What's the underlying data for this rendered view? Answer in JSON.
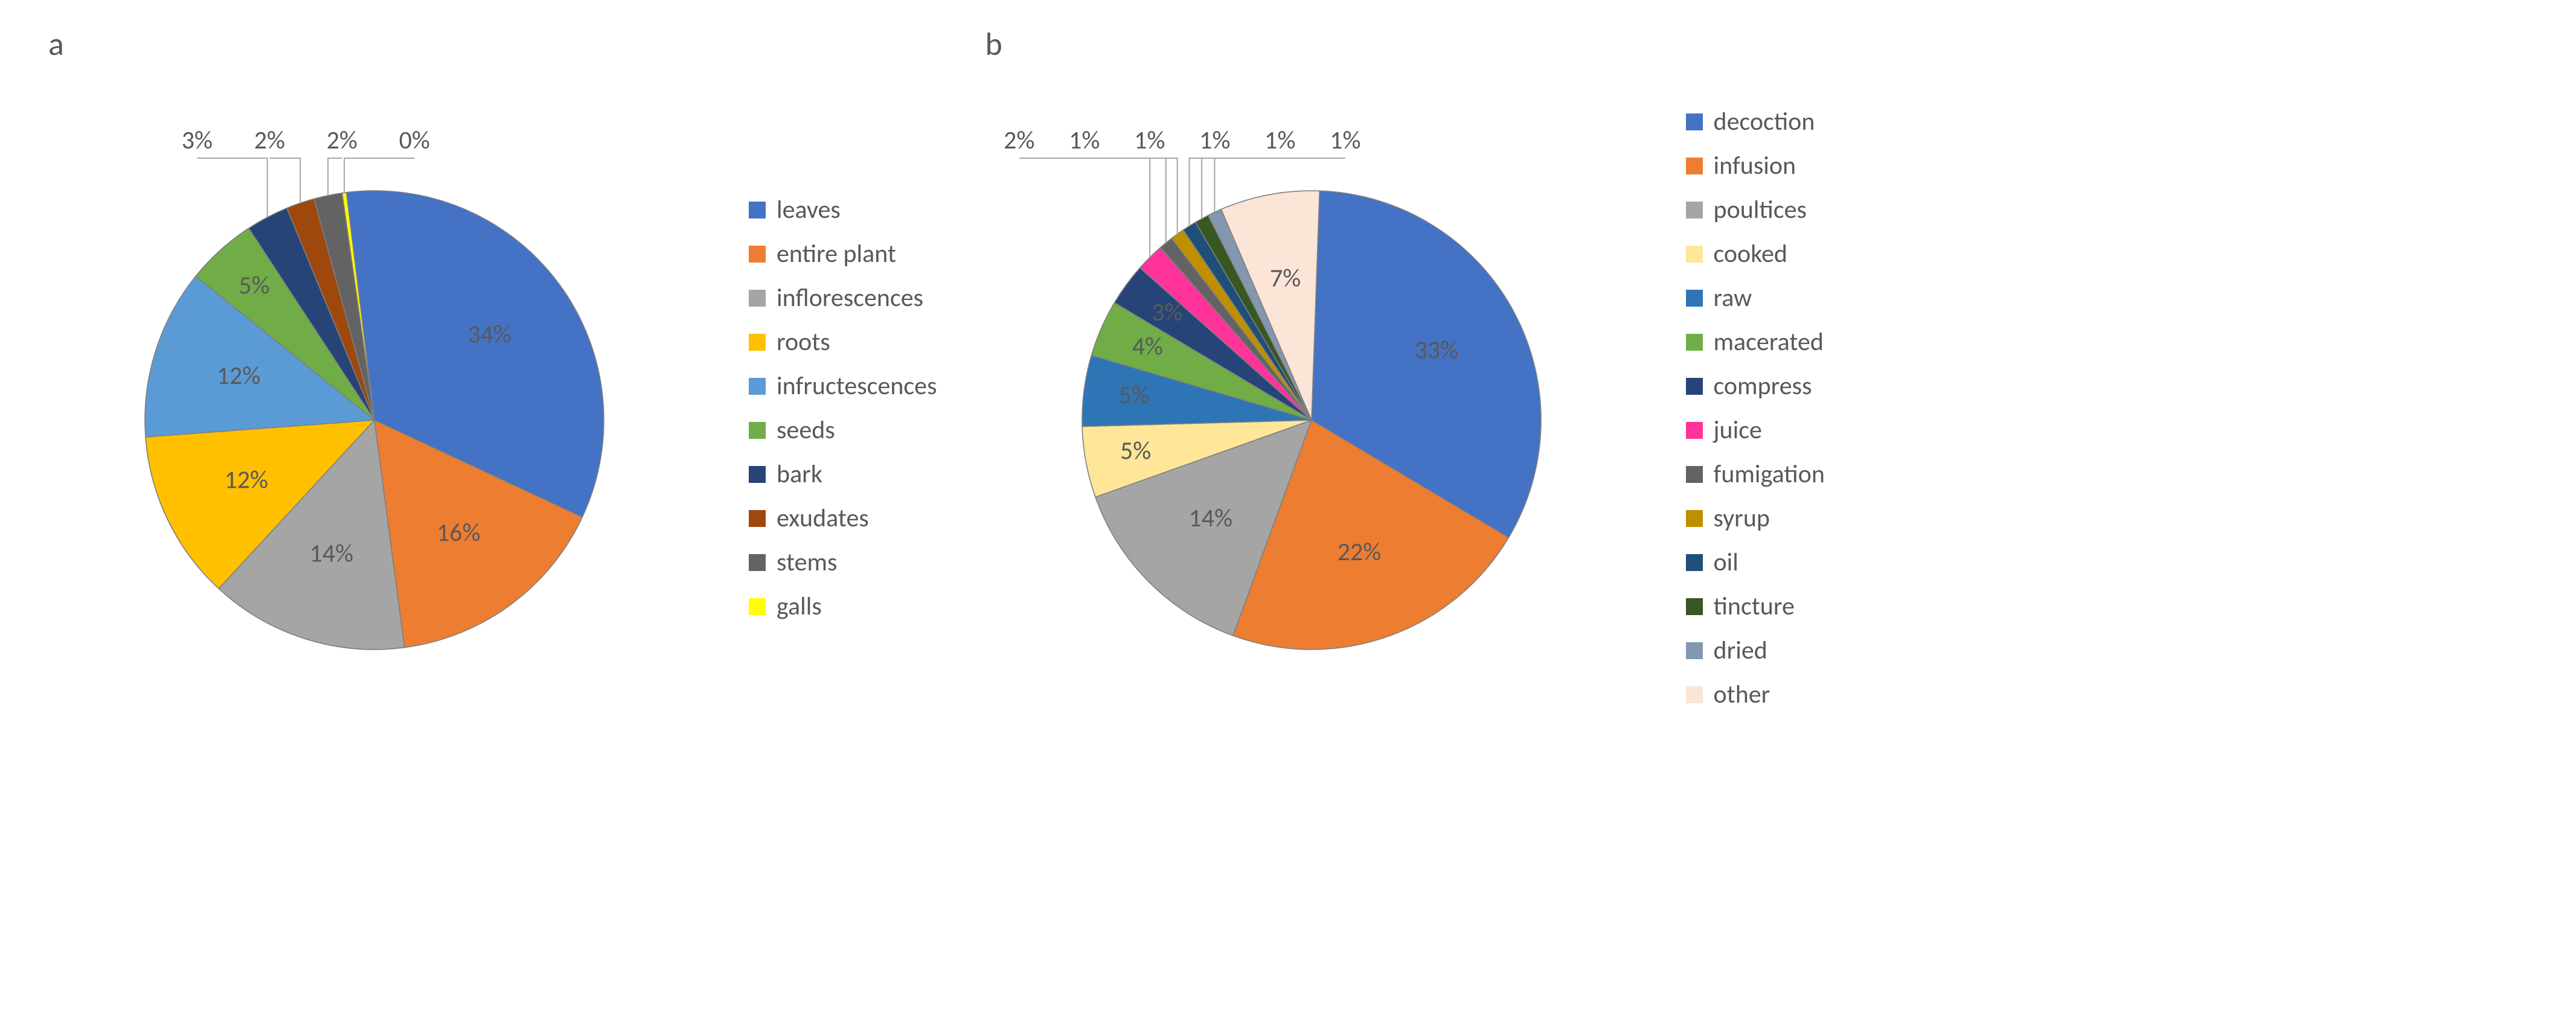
{
  "charts": [
    {
      "id": "chart-a",
      "panel_label": "a",
      "type": "pie",
      "radius": 380,
      "border_color": "#7f7f7f",
      "border_width": 1.6,
      "label_color": "#595959",
      "label_fontsize": 42,
      "legend_fontsize": 42,
      "background_color": "#ffffff",
      "start_angle_deg": -7,
      "slices": [
        {
          "label": "leaves",
          "value": 34,
          "percent": "34%",
          "color": "#4472c4",
          "label_mode": "inside"
        },
        {
          "label": "entire plant",
          "value": 16,
          "percent": "16%",
          "color": "#ed7d31",
          "label_mode": "inside"
        },
        {
          "label": "inflorescences",
          "value": 14,
          "percent": "14%",
          "color": "#a5a5a5",
          "label_mode": "inside"
        },
        {
          "label": "roots",
          "value": 12,
          "percent": "12%",
          "color": "#ffc000",
          "label_mode": "inside"
        },
        {
          "label": "infructescences",
          "value": 12,
          "percent": "12%",
          "color": "#5b9bd5",
          "label_mode": "inside"
        },
        {
          "label": "seeds",
          "value": 5,
          "percent": "5%",
          "color": "#70ad47",
          "label_mode": "inside"
        },
        {
          "label": "bark",
          "value": 3,
          "percent": "3%",
          "color": "#264478",
          "label_mode": "leader"
        },
        {
          "label": "exudates",
          "value": 2,
          "percent": "2%",
          "color": "#9e480e",
          "label_mode": "leader"
        },
        {
          "label": "stems",
          "value": 2,
          "percent": "2%",
          "color": "#636363",
          "label_mode": "leader"
        },
        {
          "label": "galls",
          "value": 0.3,
          "percent": "0%",
          "color": "#ffff00",
          "label_mode": "leader"
        }
      ]
    },
    {
      "id": "chart-b",
      "panel_label": "b",
      "type": "pie",
      "radius": 380,
      "border_color": "#7f7f7f",
      "border_width": 1.6,
      "label_color": "#595959",
      "label_fontsize": 42,
      "legend_fontsize": 42,
      "background_color": "#ffffff",
      "start_angle_deg": 2,
      "slices": [
        {
          "label": "decoction",
          "value": 33,
          "percent": "33%",
          "color": "#4472c4",
          "label_mode": "inside"
        },
        {
          "label": "infusion",
          "value": 22,
          "percent": "22%",
          "color": "#ed7d31",
          "label_mode": "inside"
        },
        {
          "label": "poultices",
          "value": 14,
          "percent": "14%",
          "color": "#a5a5a5",
          "label_mode": "inside"
        },
        {
          "label": "cooked",
          "value": 5,
          "percent": "5%",
          "color": "#ffe699",
          "label_mode": "inside"
        },
        {
          "label": "raw",
          "value": 5,
          "percent": "5%",
          "color": "#2e75b6",
          "label_mode": "inside"
        },
        {
          "label": "macerated",
          "value": 4,
          "percent": "4%",
          "color": "#70ad47",
          "label_mode": "inside"
        },
        {
          "label": "compress",
          "value": 3,
          "percent": "3%",
          "color": "#264478",
          "label_mode": "inside"
        },
        {
          "label": "juice",
          "value": 2,
          "percent": "2%",
          "color": "#ff3399",
          "label_mode": "leader"
        },
        {
          "label": "fumigation",
          "value": 1,
          "percent": "1%",
          "color": "#636363",
          "label_mode": "leader"
        },
        {
          "label": "syrup",
          "value": 1,
          "percent": "1%",
          "color": "#bf8f00",
          "label_mode": "leader"
        },
        {
          "label": "oil",
          "value": 1,
          "percent": "1%",
          "color": "#1f4e79",
          "label_mode": "leader"
        },
        {
          "label": "tincture",
          "value": 1,
          "percent": "1%",
          "color": "#385723",
          "label_mode": "leader"
        },
        {
          "label": "dried",
          "value": 1,
          "percent": "1%",
          "color": "#8497b0",
          "label_mode": "leader"
        },
        {
          "label": "other",
          "value": 7,
          "percent": "7%",
          "color": "#fbe5d6",
          "label_mode": "inside"
        }
      ]
    }
  ]
}
